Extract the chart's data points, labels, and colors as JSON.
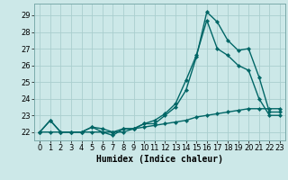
{
  "title": "",
  "xlabel": "Humidex (Indice chaleur)",
  "ylabel": "",
  "bg_color": "#cce8e8",
  "grid_color": "#aacece",
  "line_color": "#006666",
  "xlim": [
    -0.5,
    23.5
  ],
  "ylim": [
    21.5,
    29.7
  ],
  "yticks": [
    22,
    23,
    24,
    25,
    26,
    27,
    28,
    29
  ],
  "xticks": [
    0,
    1,
    2,
    3,
    4,
    5,
    6,
    7,
    8,
    9,
    10,
    11,
    12,
    13,
    14,
    15,
    16,
    17,
    18,
    19,
    20,
    21,
    22,
    23
  ],
  "series1_x": [
    0,
    1,
    2,
    3,
    4,
    5,
    6,
    7,
    8,
    9,
    10,
    11,
    12,
    13,
    14,
    15,
    16,
    17,
    18,
    19,
    20,
    21,
    22,
    23
  ],
  "series1_y": [
    22.0,
    22.7,
    22.0,
    22.0,
    22.0,
    22.3,
    22.0,
    21.8,
    22.2,
    22.2,
    22.5,
    22.5,
    23.0,
    23.5,
    24.5,
    26.5,
    29.2,
    28.6,
    27.5,
    26.9,
    27.0,
    25.3,
    23.2,
    23.2
  ],
  "series2_x": [
    0,
    1,
    2,
    3,
    4,
    5,
    6,
    7,
    8,
    9,
    10,
    11,
    12,
    13,
    14,
    15,
    16,
    17,
    18,
    19,
    20,
    21,
    22,
    23
  ],
  "series2_y": [
    22.0,
    22.7,
    22.0,
    22.0,
    22.0,
    22.3,
    22.2,
    22.0,
    22.2,
    22.2,
    22.5,
    22.7,
    23.1,
    23.7,
    25.1,
    26.6,
    28.7,
    27.0,
    26.6,
    26.0,
    25.7,
    24.0,
    23.0,
    23.0
  ],
  "series3_x": [
    0,
    1,
    2,
    3,
    4,
    5,
    6,
    7,
    8,
    9,
    10,
    11,
    12,
    13,
    14,
    15,
    16,
    17,
    18,
    19,
    20,
    21,
    22,
    23
  ],
  "series3_y": [
    22.0,
    22.0,
    22.0,
    22.0,
    22.0,
    22.0,
    22.0,
    22.0,
    22.0,
    22.2,
    22.3,
    22.4,
    22.5,
    22.6,
    22.7,
    22.9,
    23.0,
    23.1,
    23.2,
    23.3,
    23.4,
    23.4,
    23.4,
    23.4
  ],
  "marker": "D",
  "marker_size": 2.2,
  "line_width": 1.0,
  "tick_fontsize": 6.0,
  "xlabel_fontsize": 7.0
}
